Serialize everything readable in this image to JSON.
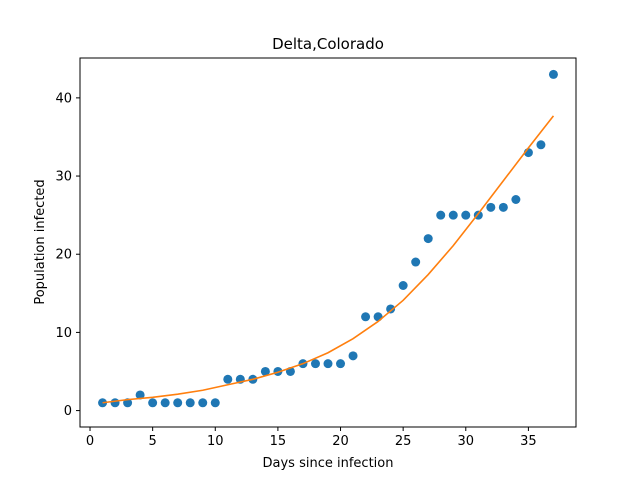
{
  "chart_data": {
    "type": "scatter",
    "title": "Delta,Colorado",
    "xlabel": "Days since infection",
    "ylabel": "Population infected",
    "xlim": [
      -0.8,
      38.8
    ],
    "ylim": [
      -2.1,
      45.1
    ],
    "xticks": [
      0,
      5,
      10,
      15,
      20,
      25,
      30,
      35
    ],
    "yticks": [
      0,
      10,
      20,
      30,
      40
    ],
    "grid": false,
    "series": [
      {
        "kind": "scatter",
        "color": "#1f77b4",
        "x": [
          1,
          2,
          3,
          4,
          5,
          6,
          7,
          8,
          9,
          10,
          11,
          12,
          13,
          14,
          15,
          16,
          17,
          18,
          19,
          20,
          21,
          22,
          23,
          24,
          25,
          26,
          27,
          28,
          29,
          30,
          31,
          32,
          33,
          34,
          35,
          36,
          37
        ],
        "y": [
          1,
          1,
          1,
          2,
          1,
          1,
          1,
          1,
          1,
          1,
          4,
          4,
          4,
          5,
          5,
          5,
          6,
          6,
          6,
          6,
          7,
          12,
          12,
          13,
          16,
          19,
          22,
          25,
          25,
          25,
          25,
          26,
          26,
          27,
          33,
          34,
          43
        ]
      },
      {
        "kind": "line",
        "color": "#ff7f0e",
        "x": [
          1,
          3,
          5,
          7,
          9,
          11,
          13,
          15,
          17,
          19,
          21,
          23,
          25,
          27,
          29,
          31,
          33,
          35,
          37
        ],
        "y": [
          1.0,
          1.4,
          1.7,
          2.1,
          2.6,
          3.3,
          4.0,
          4.9,
          6.0,
          7.4,
          9.2,
          11.4,
          14.1,
          17.4,
          21.1,
          25.2,
          29.4,
          33.6,
          37.7
        ]
      }
    ]
  }
}
